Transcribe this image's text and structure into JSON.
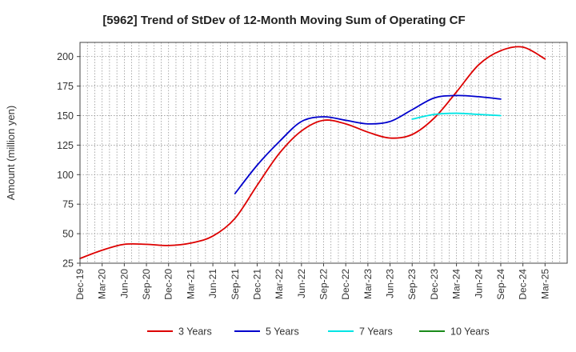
{
  "chart_data": {
    "type": "line",
    "title": "[5962]  Trend of StDev of 12-Month Moving Sum of Operating CF",
    "xlabel": "",
    "ylabel": "Amount (million yen)",
    "ylim": [
      25,
      212
    ],
    "yticks": [
      25,
      50,
      75,
      100,
      125,
      150,
      175,
      200
    ],
    "x_ticks": [
      "Dec-19",
      "Mar-20",
      "Jun-20",
      "Sep-20",
      "Dec-20",
      "Mar-21",
      "Jun-21",
      "Sep-21",
      "Dec-21",
      "Mar-22",
      "Jun-22",
      "Sep-22",
      "Dec-22",
      "Mar-23",
      "Jun-23",
      "Sep-23",
      "Dec-23",
      "Mar-24",
      "Jun-24",
      "Sep-24",
      "Dec-24",
      "Mar-25"
    ],
    "grid": true,
    "legend_position": "bottom",
    "series": [
      {
        "name": "3 Years",
        "color": "#dd0000",
        "start_index": 0,
        "values": [
          29,
          36,
          41,
          41,
          40,
          42,
          48,
          63,
          91,
          118,
          137,
          146,
          143,
          136,
          131,
          134,
          148,
          170,
          193,
          205,
          208,
          198
        ]
      },
      {
        "name": "5 Years",
        "color": "#0000cc",
        "start_index": 7,
        "values": [
          84,
          108,
          128,
          145,
          149,
          146,
          143,
          145,
          155,
          165,
          167,
          166,
          164
        ]
      },
      {
        "name": "7 Years",
        "color": "#00e5e5",
        "start_index": 15,
        "values": [
          147,
          151,
          152,
          151,
          150
        ]
      },
      {
        "name": "10 Years",
        "color": "#1a8a1a",
        "start_index": 0,
        "values": []
      }
    ]
  }
}
